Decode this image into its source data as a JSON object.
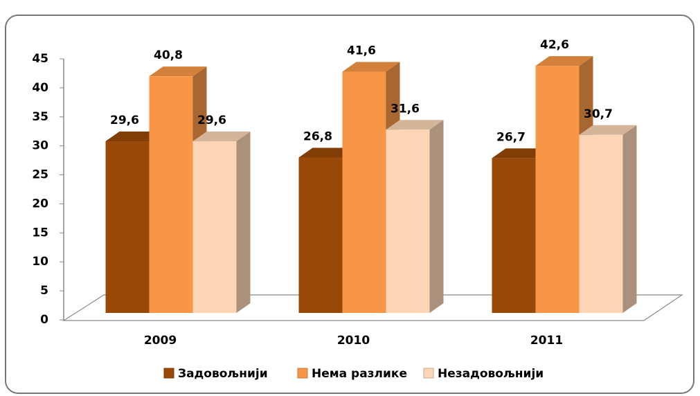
{
  "chart_data": {
    "type": "bar3d",
    "categories": [
      "2009",
      "2010",
      "2011"
    ],
    "series": [
      {
        "name": "Задовољнији",
        "color": "#984807",
        "values": [
          29.6,
          26.8,
          26.7
        ],
        "value_labels": [
          "29,6",
          "26,8",
          "26,7"
        ]
      },
      {
        "name": "Нема разлике",
        "color": "#F79646",
        "values": [
          40.8,
          41.6,
          42.6
        ],
        "value_labels": [
          "40,8",
          "41,6",
          "42,6"
        ]
      },
      {
        "name": "Незадовољнији",
        "color": "#FBD5B5",
        "values": [
          29.6,
          31.6,
          30.7
        ],
        "value_labels": [
          "29,6",
          "31,6",
          "30,7"
        ]
      }
    ],
    "ylim": [
      0,
      45
    ],
    "yticks": [
      0,
      5,
      10,
      15,
      20,
      25,
      30,
      35,
      40,
      45
    ],
    "grid": false,
    "legend": "bottom"
  }
}
